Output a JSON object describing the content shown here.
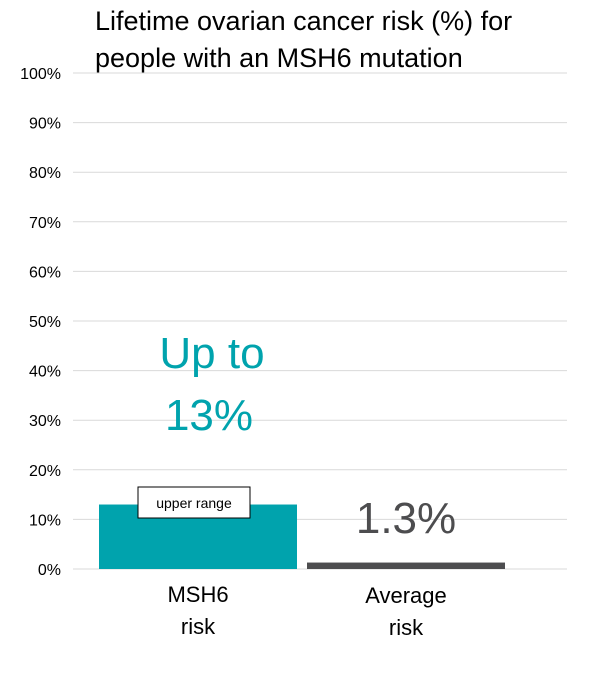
{
  "chart_data": {
    "type": "bar",
    "title": [
      "Lifetime ovarian cancer risk (%) for",
      "people with an MSH6 mutation"
    ],
    "xlabel": "",
    "ylabel": "",
    "ylim": [
      0,
      100
    ],
    "yticks": [
      0,
      10,
      20,
      30,
      40,
      50,
      60,
      70,
      80,
      90,
      100
    ],
    "ytick_labels": [
      "0%",
      "10%",
      "20%",
      "30%",
      "40%",
      "50%",
      "60%",
      "70%",
      "80%",
      "90%",
      "100%"
    ],
    "grid": true,
    "categories": [
      [
        "MSH6",
        "risk"
      ],
      [
        "Average",
        "risk"
      ]
    ],
    "values": [
      13,
      1.3
    ],
    "colors": [
      "#00A3AD",
      "#4D4D4F"
    ],
    "data_labels": [
      [
        "Up to",
        "13%"
      ],
      [
        "1.3%"
      ]
    ],
    "data_label_colors": [
      "#00A3AD",
      "#4D4D4F"
    ],
    "annotation": "upper range"
  }
}
